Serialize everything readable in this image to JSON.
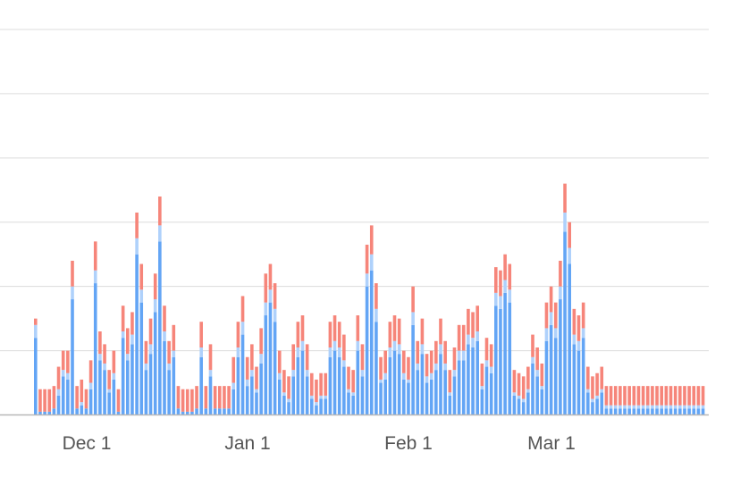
{
  "colors": {
    "series_bottom": "#63a5f5",
    "series_middle": "#afd1fb",
    "series_top": "#f6857a",
    "grid": "#dcdcdc",
    "axis": "#b8b8b8",
    "tick_text": "#555555"
  },
  "chart_data": {
    "type": "bar",
    "stacked": true,
    "title": "",
    "xlabel": "",
    "ylabel": "",
    "x_tick_labels": [
      "Dec 1",
      "Jan 1",
      "Feb 1",
      "Mar 1"
    ],
    "y_tick_labels": [],
    "ylim": [
      0,
      6
    ],
    "grid": true,
    "legend": "none",
    "series": [
      {
        "values": [
          1.2,
          0.05,
          0.05,
          0.05,
          0.1,
          0.3,
          0.6,
          0.55,
          1.8,
          0.1,
          0.15,
          0.1,
          0.4,
          2.05,
          0.85,
          0.7,
          0.35,
          0.55,
          0.05,
          1.2,
          0.85,
          1.1,
          2.5,
          1.75,
          0.7,
          0.95,
          1.6,
          2.7,
          1.15,
          0.7,
          0.9,
          0.1,
          0.05,
          0.05,
          0.05,
          0.1,
          0.9,
          0.1,
          0.6,
          0.1,
          0.1,
          0.1,
          0.1,
          0.4,
          0.9,
          1.25,
          0.45,
          0.6,
          0.35,
          0.8,
          1.55,
          1.75,
          1.45,
          0.55,
          0.3,
          0.2,
          0.6,
          0.9,
          1.0,
          0.6,
          0.25,
          0.15,
          0.25,
          0.25,
          0.9,
          1.0,
          0.9,
          0.75,
          0.35,
          0.3,
          1.0,
          0.6,
          2.0,
          2.25,
          1.45,
          0.5,
          0.55,
          0.9,
          1.0,
          0.95,
          0.55,
          0.5,
          1.4,
          0.7,
          0.95,
          0.5,
          0.55,
          0.7,
          0.95,
          0.7,
          0.3,
          0.6,
          0.85,
          0.85,
          1.1,
          1.05,
          1.15,
          0.4,
          0.75,
          0.65,
          1.7,
          1.65,
          1.9,
          1.75,
          0.3,
          0.25,
          0.2,
          0.35,
          0.8,
          0.6,
          0.4,
          1.15,
          1.4,
          1.2,
          1.8,
          2.85,
          2.35,
          1.1,
          1.0,
          1.2,
          0.35,
          0.2,
          0.25,
          0.35,
          0.1,
          0.1,
          0.1,
          0.1,
          0.1,
          0.1,
          0.1,
          0.1,
          0.1,
          0.1,
          0.1,
          0.1,
          0.1,
          0.1,
          0.1,
          0.1,
          0.1,
          0.1,
          0.1,
          0.1,
          0.1,
          0.1,
          0.1,
          0.1
        ]
      },
      {
        "values": [
          0.2,
          0.0,
          0.0,
          0.0,
          0.0,
          0.1,
          0.1,
          0.1,
          0.2,
          0.0,
          0.05,
          0.0,
          0.1,
          0.2,
          0.1,
          0.1,
          0.05,
          0.1,
          0.0,
          0.1,
          0.1,
          0.15,
          0.25,
          0.2,
          0.1,
          0.15,
          0.2,
          0.25,
          0.15,
          0.1,
          0.1,
          0.0,
          0.0,
          0.0,
          0.0,
          0.0,
          0.15,
          0.0,
          0.1,
          0.0,
          0.0,
          0.0,
          0.0,
          0.1,
          0.15,
          0.2,
          0.1,
          0.1,
          0.05,
          0.15,
          0.2,
          0.2,
          0.2,
          0.1,
          0.05,
          0.05,
          0.1,
          0.15,
          0.15,
          0.1,
          0.05,
          0.05,
          0.05,
          0.05,
          0.15,
          0.15,
          0.15,
          0.1,
          0.05,
          0.05,
          0.15,
          0.1,
          0.2,
          0.25,
          0.2,
          0.05,
          0.1,
          0.15,
          0.15,
          0.15,
          0.1,
          0.05,
          0.2,
          0.1,
          0.15,
          0.1,
          0.1,
          0.1,
          0.15,
          0.1,
          0.05,
          0.1,
          0.15,
          0.15,
          0.15,
          0.15,
          0.15,
          0.05,
          0.1,
          0.1,
          0.2,
          0.2,
          0.2,
          0.2,
          0.05,
          0.05,
          0.05,
          0.05,
          0.1,
          0.1,
          0.05,
          0.2,
          0.2,
          0.15,
          0.2,
          0.3,
          0.25,
          0.15,
          0.15,
          0.15,
          0.05,
          0.05,
          0.05,
          0.05,
          0.05,
          0.05,
          0.05,
          0.05,
          0.05,
          0.05,
          0.05,
          0.05,
          0.05,
          0.05,
          0.05,
          0.05,
          0.05,
          0.05,
          0.05,
          0.05,
          0.05,
          0.05,
          0.05,
          0.05,
          0.05,
          0.05,
          0.05,
          0.05
        ]
      },
      {
        "values": [
          0.1,
          0.35,
          0.35,
          0.35,
          0.35,
          0.35,
          0.3,
          0.35,
          0.4,
          0.35,
          0.35,
          0.3,
          0.35,
          0.45,
          0.35,
          0.3,
          0.3,
          0.35,
          0.35,
          0.4,
          0.4,
          0.35,
          0.4,
          0.4,
          0.35,
          0.4,
          0.4,
          0.45,
          0.4,
          0.35,
          0.4,
          0.35,
          0.35,
          0.35,
          0.35,
          0.35,
          0.4,
          0.35,
          0.4,
          0.35,
          0.35,
          0.35,
          0.35,
          0.4,
          0.4,
          0.4,
          0.35,
          0.4,
          0.35,
          0.4,
          0.45,
          0.4,
          0.4,
          0.35,
          0.35,
          0.35,
          0.4,
          0.4,
          0.4,
          0.4,
          0.35,
          0.35,
          0.35,
          0.35,
          0.4,
          0.4,
          0.4,
          0.4,
          0.35,
          0.35,
          0.4,
          0.4,
          0.45,
          0.45,
          0.4,
          0.35,
          0.35,
          0.4,
          0.4,
          0.4,
          0.35,
          0.35,
          0.4,
          0.35,
          0.4,
          0.35,
          0.35,
          0.35,
          0.4,
          0.35,
          0.35,
          0.35,
          0.4,
          0.4,
          0.4,
          0.4,
          0.4,
          0.35,
          0.35,
          0.35,
          0.4,
          0.4,
          0.4,
          0.4,
          0.35,
          0.35,
          0.35,
          0.35,
          0.35,
          0.35,
          0.35,
          0.4,
          0.4,
          0.4,
          0.4,
          0.45,
          0.4,
          0.4,
          0.4,
          0.4,
          0.35,
          0.35,
          0.35,
          0.35,
          0.3,
          0.3,
          0.3,
          0.3,
          0.3,
          0.3,
          0.3,
          0.3,
          0.3,
          0.3,
          0.3,
          0.3,
          0.3,
          0.3,
          0.3,
          0.3,
          0.3,
          0.3,
          0.3,
          0.3,
          0.3,
          0.3,
          0.3,
          0.3
        ]
      }
    ]
  }
}
